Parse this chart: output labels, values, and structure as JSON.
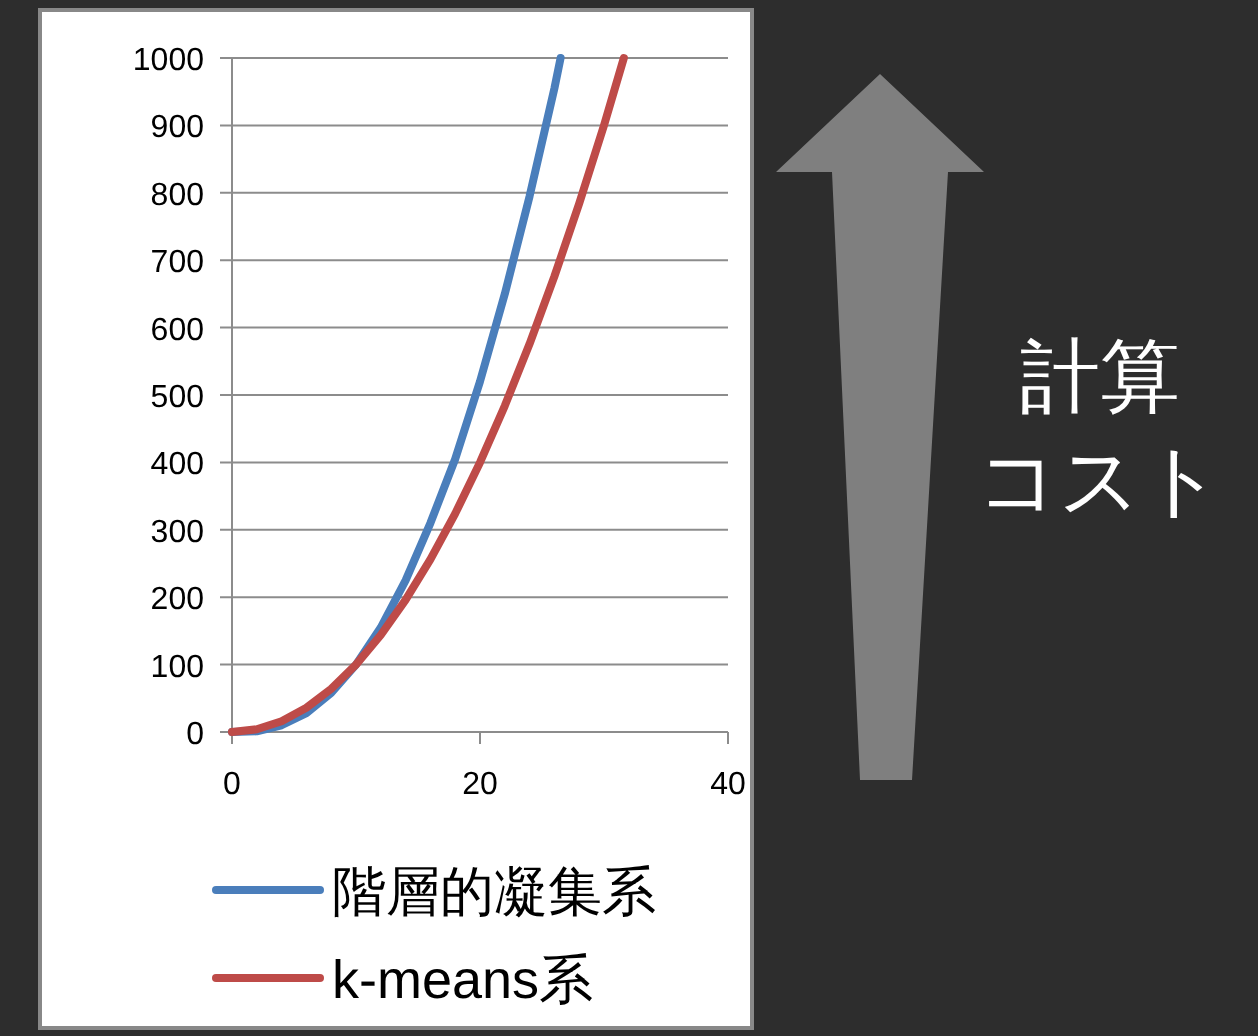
{
  "chart_data": {
    "type": "line",
    "xlim": [
      0,
      40
    ],
    "xticks": [
      0,
      20,
      40
    ],
    "ylim": [
      0,
      1000
    ],
    "yticks": [
      0,
      100,
      200,
      300,
      400,
      500,
      600,
      700,
      800,
      900,
      1000
    ],
    "grid": "y",
    "legend": "bottom",
    "series": [
      {
        "name": "階層的凝集系",
        "color": "#4a7ebb",
        "x": [
          0,
          2,
          4,
          6,
          8,
          10,
          12,
          14,
          16,
          18,
          20,
          22,
          24,
          26,
          26.5
        ],
        "values": [
          0,
          1,
          10,
          28,
          58,
          100,
          155,
          225,
          310,
          405,
          520,
          650,
          795,
          955,
          1000
        ]
      },
      {
        "name": "k-means系",
        "color": "#be4b48",
        "x": [
          0,
          2,
          4,
          6,
          8,
          10,
          12,
          14,
          16,
          18,
          20,
          22,
          24,
          26,
          28,
          30,
          31.6
        ],
        "values": [
          0,
          4,
          16,
          36,
          64,
          100,
          144,
          196,
          256,
          324,
          400,
          484,
          576,
          676,
          784,
          900,
          1000
        ]
      }
    ],
    "annotations": [
      "計算",
      "コスト"
    ]
  }
}
